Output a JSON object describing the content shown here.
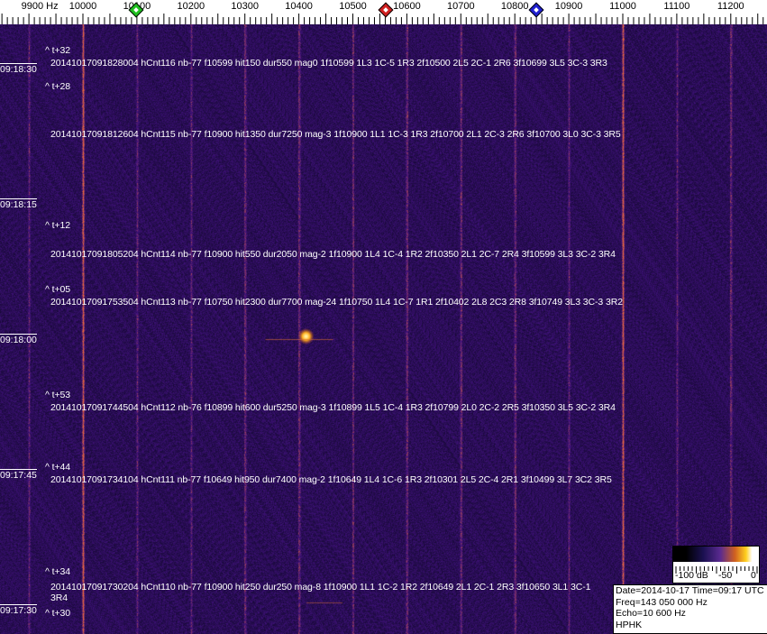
{
  "axis": {
    "unit_label": "9900 Hz",
    "labels": [
      {
        "freq": 9900,
        "text": "9900 Hz"
      },
      {
        "freq": 10000,
        "text": "10000"
      },
      {
        "freq": 10100,
        "text": "10100"
      },
      {
        "freq": 10200,
        "text": "10200"
      },
      {
        "freq": 10300,
        "text": "10300"
      },
      {
        "freq": 10400,
        "text": "10400"
      },
      {
        "freq": 10500,
        "text": "10500"
      },
      {
        "freq": 10600,
        "text": "10600"
      },
      {
        "freq": 10700,
        "text": "10700"
      },
      {
        "freq": 10800,
        "text": "10800"
      },
      {
        "freq": 10900,
        "text": "10900"
      },
      {
        "freq": 11000,
        "text": "11000"
      },
      {
        "freq": 11100,
        "text": "11100"
      },
      {
        "freq": 11200,
        "text": "11200"
      }
    ],
    "freq_range_hz": [
      9800,
      11260
    ],
    "markers": [
      {
        "name": "green-marker",
        "freq": 10098,
        "color": "#20c020"
      },
      {
        "name": "red-marker",
        "freq": 10561,
        "color": "#d02020"
      },
      {
        "name": "blue-marker",
        "freq": 10840,
        "color": "#2020d0"
      }
    ]
  },
  "waterfall": {
    "background_color": "#1a0c4a",
    "line_color": "#e06a30",
    "strong_lines_hz": [
      10000,
      11000
    ],
    "weak_lines_hz": [
      9900,
      10100,
      10200,
      10300,
      10400,
      10500,
      10600,
      10700,
      10800,
      10900,
      11100,
      11200
    ],
    "echo": {
      "freq": 10430,
      "time": "09:18:00"
    }
  },
  "time_labels": [
    "09:18:30",
    "09:18:15",
    "09:18:00",
    "09:17:45",
    "09:17:30"
  ],
  "offset_labels": [
    "^ t+32",
    "^ t+28",
    "^ t+12",
    "^ t+05",
    "^ t+53",
    "^ t+44",
    "^ t+34",
    "^ t+30"
  ],
  "detections": [
    "20141017091828004 hCnt116 nb-77 f10599 hit150 dur550 mag0 1f10599 1L3 1C-5 1R3 2f10500 2L5 2C-1 2R6 3f10699 3L5 3C-3 3R3",
    "20141017091812604 hCnt115 nb-77 f10900 hit1350 dur7250 mag-3 1f10900 1L1 1C-3 1R3 2f10700 2L1 2C-3 2R6 3f10700 3L0 3C-3 3R5",
    "20141017091805204 hCnt114 nb-77 f10900 hit550 dur2050 mag-2 1f10900 1L4 1C-4 1R2 2f10350 2L1 2C-7 2R4 3f10599 3L3 3C-2 3R4",
    "20141017091753504 hCnt113 nb-77 f10750 hit2300 dur7700 mag-24 1f10750 1L4 1C-7 1R1 2f10402 2L8 2C3 2R8 3f10749 3L3 3C-3 3R2",
    "20141017091744504 hCnt112 nb-76 f10899 hit600 dur5250 mag-3 1f10899 1L5 1C-4 1R3 2f10799 2L0 2C-2 2R5 3f10350 3L5 3C-2 3R4",
    "20141017091734104 hCnt111 nb-77 f10649 hit950 dur7400 mag-2 1f10649 1L4 1C-6 1R3 2f10301 2L5 2C-4 2R1 3f10499 3L7 3C2 3R5",
    "20141017091730204 hCnt110 nb-77 f10900 hit250 dur250 mag-8 1f10900 1L1 1C-2 1R2 2f10649 2L1 2C-1 2R3 3f10650 3L1 3C-1 3R4"
  ],
  "colorbar": {
    "labels": [
      "-100 dB",
      "-50",
      "0"
    ]
  },
  "info": {
    "date_time": "Date=2014-10-17 Time=09:17 UTC",
    "freq": "Freq=143 050 000 Hz",
    "echo": "Echo=10 600 Hz",
    "station": "HPHK"
  }
}
